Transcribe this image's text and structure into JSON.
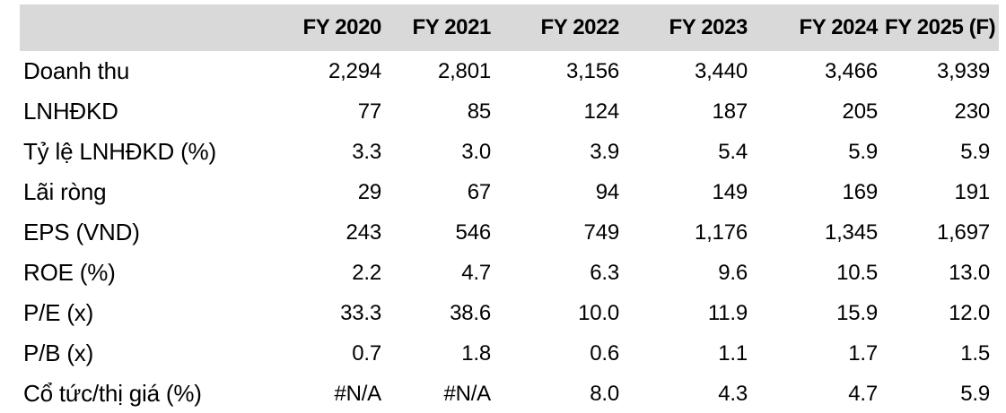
{
  "colors": {
    "header_bg": "#d9d9d9",
    "text": "#000000",
    "background": "#ffffff"
  },
  "chart_data": {
    "type": "table",
    "title": "",
    "corner_header": "",
    "columns": [
      "FY 2020",
      "FY 2021",
      "FY 2022",
      "FY 2023",
      "FY 2024",
      "FY 2025 (F)"
    ],
    "rows": [
      {
        "label": "Doanh thu",
        "values": [
          "2,294",
          "2,801",
          "3,156",
          "3,440",
          "3,466",
          "3,939"
        ]
      },
      {
        "label": "LNHĐKD",
        "values": [
          "77",
          "85",
          "124",
          "187",
          "205",
          "230"
        ]
      },
      {
        "label": "Tỷ lệ LNHĐKD (%)",
        "values": [
          "3.3",
          "3.0",
          "3.9",
          "5.4",
          "5.9",
          "5.9"
        ]
      },
      {
        "label": "Lãi ròng",
        "values": [
          "29",
          "67",
          "94",
          "149",
          "169",
          "191"
        ]
      },
      {
        "label": "EPS (VND)",
        "values": [
          "243",
          "546",
          "749",
          "1,176",
          "1,345",
          "1,697"
        ]
      },
      {
        "label": "ROE (%)",
        "values": [
          "2.2",
          "4.7",
          "6.3",
          "9.6",
          "10.5",
          "13.0"
        ]
      },
      {
        "label": "P/E (x)",
        "values": [
          "33.3",
          "38.6",
          "10.0",
          "11.9",
          "15.9",
          "12.0"
        ]
      },
      {
        "label": "P/B (x)",
        "values": [
          "0.7",
          "1.8",
          "0.6",
          "1.1",
          "1.7",
          "1.5"
        ]
      },
      {
        "label": "Cổ tức/thị giá (%)",
        "values": [
          "#N/A",
          "#N/A",
          "8.0",
          "4.3",
          "4.7",
          "5.9"
        ]
      }
    ],
    "layout": {
      "legend": "none",
      "grid": "off",
      "header_alignment": "right",
      "value_alignment": "right",
      "label_alignment": "left"
    }
  }
}
